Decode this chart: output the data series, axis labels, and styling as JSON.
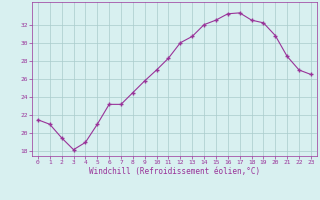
{
  "x": [
    0,
    1,
    2,
    3,
    4,
    5,
    6,
    7,
    8,
    9,
    10,
    11,
    12,
    13,
    14,
    15,
    16,
    17,
    18,
    19,
    20,
    21,
    22,
    23
  ],
  "y": [
    21.5,
    21.0,
    19.5,
    18.2,
    19.0,
    21.0,
    23.2,
    23.2,
    24.5,
    25.8,
    27.0,
    28.3,
    30.0,
    30.7,
    32.0,
    32.5,
    33.2,
    33.3,
    32.5,
    32.2,
    30.8,
    28.5,
    27.0,
    26.5
  ],
  "line_color": "#993399",
  "marker": "+",
  "bg_color": "#d8f0f0",
  "grid_color": "#aacccc",
  "xlabel": "Windchill (Refroidissement éolien,°C)",
  "xlabel_color": "#993399",
  "tick_color": "#993399",
  "spine_color": "#993399",
  "ylim": [
    17.5,
    34.5
  ],
  "xlim": [
    -0.5,
    23.5
  ],
  "yticks": [
    18,
    20,
    22,
    24,
    26,
    28,
    30,
    32
  ],
  "xticks": [
    0,
    1,
    2,
    3,
    4,
    5,
    6,
    7,
    8,
    9,
    10,
    11,
    12,
    13,
    14,
    15,
    16,
    17,
    18,
    19,
    20,
    21,
    22,
    23
  ]
}
